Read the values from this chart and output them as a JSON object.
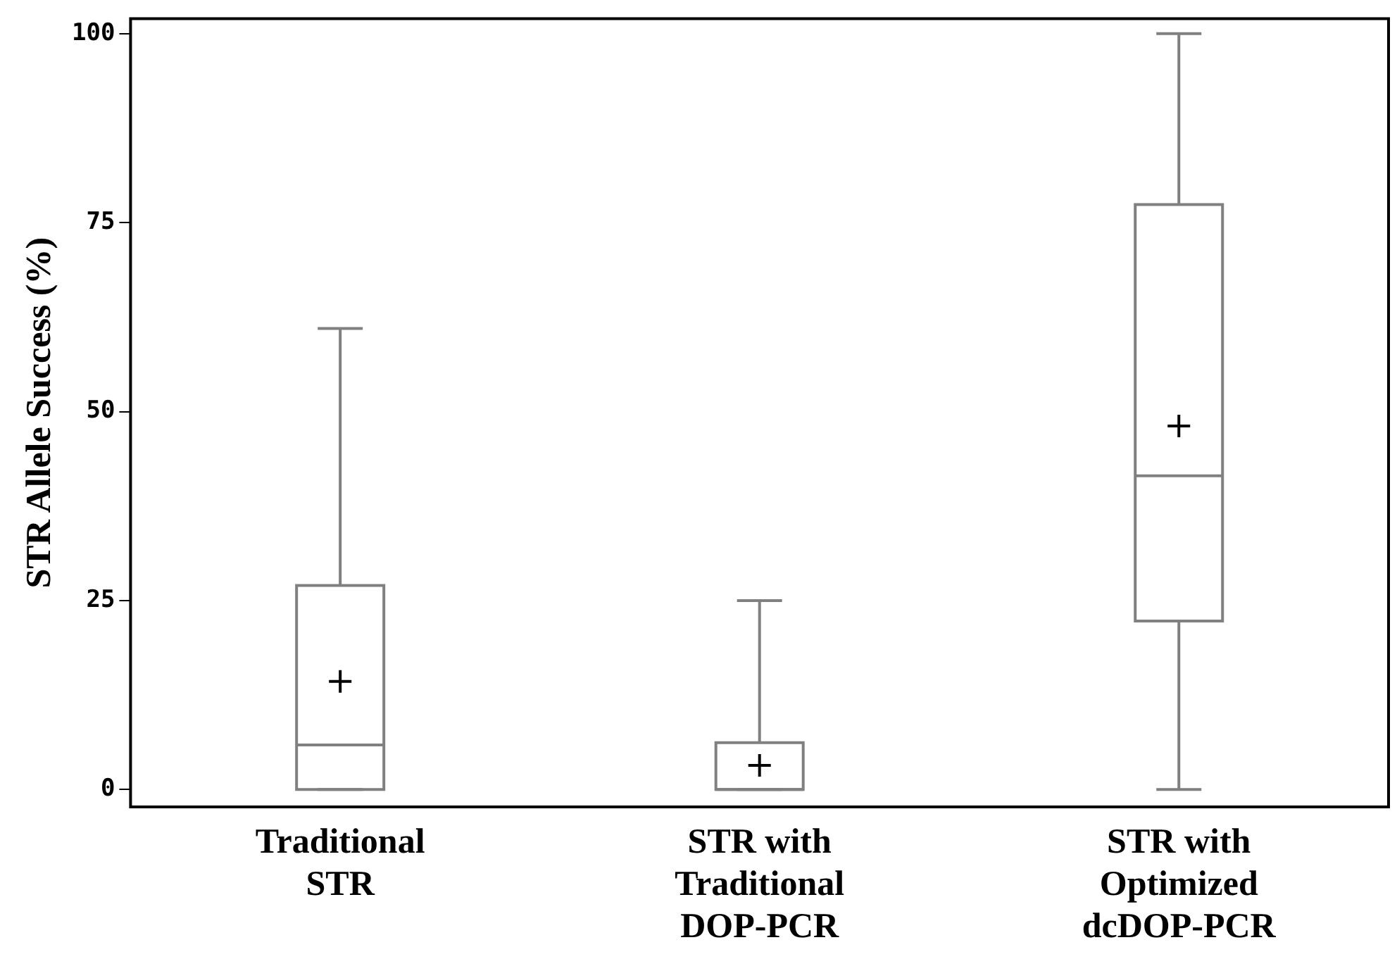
{
  "chart_data": {
    "type": "box",
    "ylabel": "STR Allele Success (%)",
    "categories": [
      "Traditional STR",
      "STR with Traditional DOP-PCR",
      "STR with Optimized dcDOP-PCR"
    ],
    "color": "#808080",
    "boxes": [
      {
        "low": 0,
        "q1": 0,
        "median": 5.9,
        "q3": 27,
        "high": 61,
        "mean": 14.3
      },
      {
        "low": 0,
        "q1": 0,
        "median": 0,
        "q3": 6.2,
        "high": 25,
        "mean": 3.2
      },
      {
        "low": 0,
        "q1": 22.3,
        "median": 41.5,
        "q3": 77.4,
        "high": 100,
        "mean": 48.1
      }
    ],
    "ylim": [
      -2.3,
      102
    ],
    "yticks": [
      0,
      25,
      50,
      75,
      100
    ],
    "grid": false,
    "legend": false
  }
}
